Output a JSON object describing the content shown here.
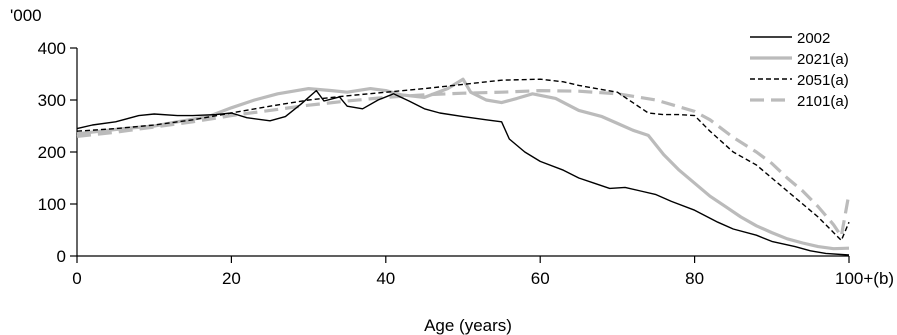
{
  "chart_data": {
    "type": "line",
    "title": "",
    "xlabel": "Age (years)",
    "ylabel": "'000",
    "xlim": [
      0,
      100
    ],
    "ylim": [
      0,
      400
    ],
    "x_ticks": [
      0,
      20,
      40,
      60,
      80,
      100
    ],
    "x_tick_labels": [
      "0",
      "20",
      "40",
      "60",
      "80",
      "100+(b)"
    ],
    "y_ticks": [
      0,
      100,
      200,
      300,
      400
    ],
    "y_tick_labels": [
      "0",
      "100",
      "200",
      "300",
      "400"
    ],
    "grid": false,
    "legend_position": "top-right",
    "series": [
      {
        "name": "2002",
        "color": "#000000",
        "style": "solid",
        "points": [
          [
            0,
            245
          ],
          [
            2,
            252
          ],
          [
            5,
            258
          ],
          [
            8,
            270
          ],
          [
            10,
            273
          ],
          [
            13,
            270
          ],
          [
            15,
            270
          ],
          [
            18,
            272
          ],
          [
            20,
            275
          ],
          [
            22,
            266
          ],
          [
            25,
            260
          ],
          [
            27,
            268
          ],
          [
            29,
            292
          ],
          [
            31,
            318
          ],
          [
            32,
            298
          ],
          [
            34,
            306
          ],
          [
            35,
            288
          ],
          [
            37,
            283
          ],
          [
            39,
            300
          ],
          [
            41,
            312
          ],
          [
            43,
            298
          ],
          [
            45,
            283
          ],
          [
            47,
            275
          ],
          [
            50,
            268
          ],
          [
            53,
            262
          ],
          [
            55,
            258
          ],
          [
            56,
            225
          ],
          [
            58,
            200
          ],
          [
            60,
            182
          ],
          [
            63,
            165
          ],
          [
            65,
            150
          ],
          [
            67,
            140
          ],
          [
            69,
            130
          ],
          [
            71,
            132
          ],
          [
            73,
            125
          ],
          [
            75,
            118
          ],
          [
            77,
            105
          ],
          [
            80,
            88
          ],
          [
            83,
            65
          ],
          [
            85,
            52
          ],
          [
            88,
            40
          ],
          [
            90,
            28
          ],
          [
            93,
            18
          ],
          [
            95,
            10
          ],
          [
            97,
            5
          ],
          [
            100,
            2
          ]
        ]
      },
      {
        "name": "2021(a)",
        "color": "#bbbbbb",
        "style": "solid",
        "points": [
          [
            0,
            235
          ],
          [
            3,
            240
          ],
          [
            6,
            245
          ],
          [
            10,
            250
          ],
          [
            13,
            258
          ],
          [
            17,
            268
          ],
          [
            20,
            285
          ],
          [
            23,
            300
          ],
          [
            26,
            312
          ],
          [
            30,
            322
          ],
          [
            33,
            318
          ],
          [
            35,
            315
          ],
          [
            38,
            322
          ],
          [
            40,
            318
          ],
          [
            42,
            310
          ],
          [
            45,
            305
          ],
          [
            48,
            322
          ],
          [
            50,
            340
          ],
          [
            51,
            315
          ],
          [
            53,
            300
          ],
          [
            55,
            295
          ],
          [
            57,
            303
          ],
          [
            59,
            312
          ],
          [
            62,
            303
          ],
          [
            65,
            280
          ],
          [
            68,
            268
          ],
          [
            70,
            255
          ],
          [
            72,
            242
          ],
          [
            74,
            232
          ],
          [
            76,
            195
          ],
          [
            78,
            165
          ],
          [
            80,
            140
          ],
          [
            82,
            115
          ],
          [
            84,
            95
          ],
          [
            86,
            75
          ],
          [
            88,
            58
          ],
          [
            90,
            45
          ],
          [
            92,
            33
          ],
          [
            94,
            25
          ],
          [
            96,
            18
          ],
          [
            98,
            14
          ],
          [
            100,
            15
          ]
        ]
      },
      {
        "name": "2051(a)",
        "color": "#000000",
        "style": "dashed",
        "points": [
          [
            0,
            240
          ],
          [
            5,
            245
          ],
          [
            10,
            252
          ],
          [
            15,
            262
          ],
          [
            20,
            275
          ],
          [
            25,
            288
          ],
          [
            30,
            300
          ],
          [
            35,
            308
          ],
          [
            40,
            315
          ],
          [
            45,
            322
          ],
          [
            50,
            330
          ],
          [
            55,
            338
          ],
          [
            60,
            340
          ],
          [
            63,
            335
          ],
          [
            65,
            328
          ],
          [
            68,
            320
          ],
          [
            70,
            315
          ],
          [
            72,
            295
          ],
          [
            74,
            275
          ],
          [
            76,
            272
          ],
          [
            78,
            272
          ],
          [
            80,
            270
          ],
          [
            82,
            240
          ],
          [
            85,
            200
          ],
          [
            88,
            175
          ],
          [
            90,
            150
          ],
          [
            92,
            125
          ],
          [
            94,
            100
          ],
          [
            96,
            75
          ],
          [
            98,
            45
          ],
          [
            99,
            30
          ],
          [
            100,
            65
          ]
        ]
      },
      {
        "name": "2101(a)",
        "color": "#bbbbbb",
        "style": "dashed",
        "points": [
          [
            0,
            230
          ],
          [
            5,
            238
          ],
          [
            10,
            248
          ],
          [
            15,
            258
          ],
          [
            20,
            270
          ],
          [
            25,
            280
          ],
          [
            30,
            290
          ],
          [
            35,
            298
          ],
          [
            40,
            305
          ],
          [
            45,
            310
          ],
          [
            50,
            313
          ],
          [
            55,
            315
          ],
          [
            60,
            318
          ],
          [
            65,
            317
          ],
          [
            70,
            312
          ],
          [
            75,
            300
          ],
          [
            80,
            278
          ],
          [
            82,
            262
          ],
          [
            85,
            228
          ],
          [
            88,
            200
          ],
          [
            90,
            178
          ],
          [
            92,
            150
          ],
          [
            94,
            125
          ],
          [
            96,
            95
          ],
          [
            98,
            60
          ],
          [
            99,
            38
          ],
          [
            100,
            120
          ]
        ]
      }
    ]
  }
}
